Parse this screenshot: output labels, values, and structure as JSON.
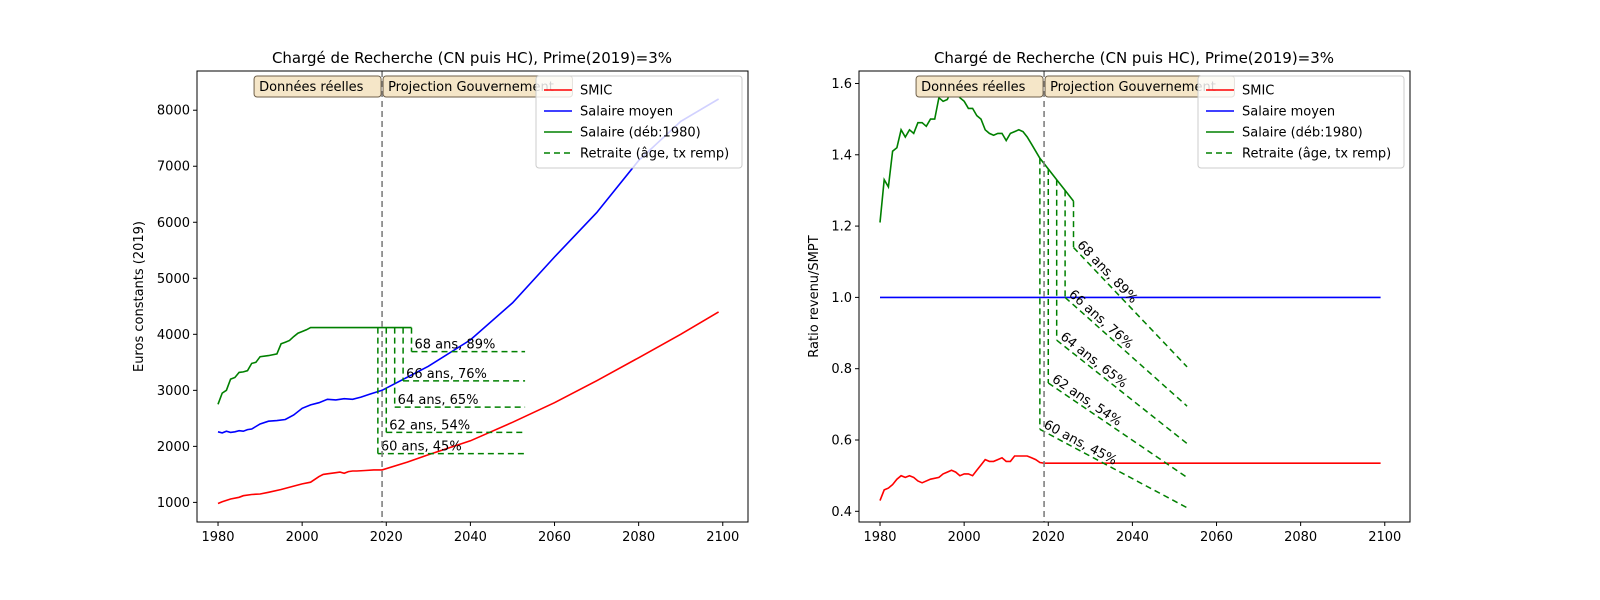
{
  "colors": {
    "smic": "#ff0000",
    "salaire_moyen": "#0000ff",
    "salaire": "#008000",
    "retraite": "#008000",
    "vline": "#808080",
    "box_fill": "#f5e6c8",
    "box_edge": "#6e5f4a"
  },
  "chart_data": [
    {
      "type": "line",
      "title": "Chargé de Recherche (CN puis HC), Prime(2019)=3%",
      "xlabel": "",
      "ylabel": "Euros constants (2019)",
      "xlim": [
        1975,
        2106
      ],
      "ylim": [
        650,
        8700
      ],
      "xticks": [
        "1980",
        "2000",
        "2020",
        "2040",
        "2060",
        "2080",
        "2100"
      ],
      "yticks": [
        "1000",
        "2000",
        "3000",
        "4000",
        "5000",
        "6000",
        "7000",
        "8000"
      ],
      "grid": false,
      "legend_position": "top-right",
      "vline_x": 2019,
      "box_left": "Données réelles",
      "box_right": "Projection Gouvernement",
      "legend": [
        "SMIC",
        "Salaire moyen",
        "Salaire (déb:1980)",
        "Retraite (âge, tx remp)"
      ],
      "series": [
        {
          "name": "SMIC",
          "style": "solid",
          "color": "#ff0000",
          "x": [
            1980,
            1981,
            1983,
            1985,
            1986,
            1988,
            1990,
            1992,
            1995,
            1998,
            2000,
            2002,
            2004,
            2005,
            2006,
            2008,
            2009,
            2010,
            2011,
            2012,
            2013,
            2015,
            2017,
            2019,
            2025,
            2030,
            2040,
            2050,
            2060,
            2070,
            2080,
            2090,
            2099
          ],
          "y": [
            980,
            1010,
            1060,
            1090,
            1120,
            1140,
            1150,
            1180,
            1230,
            1290,
            1330,
            1360,
            1460,
            1500,
            1510,
            1530,
            1540,
            1520,
            1550,
            1560,
            1560,
            1570,
            1580,
            1580,
            1720,
            1850,
            2100,
            2430,
            2780,
            3170,
            3580,
            4000,
            4400
          ]
        },
        {
          "name": "Salaire moyen",
          "style": "solid",
          "color": "#0000ff",
          "x": [
            1980,
            1981,
            1982,
            1983,
            1984,
            1985,
            1986,
            1987,
            1988,
            1990,
            1992,
            1994,
            1996,
            1998,
            2000,
            2002,
            2004,
            2006,
            2008,
            2010,
            2012,
            2014,
            2016,
            2019,
            2030,
            2040,
            2050,
            2060,
            2070,
            2080,
            2090,
            2099
          ],
          "y": [
            2260,
            2240,
            2270,
            2250,
            2260,
            2280,
            2270,
            2300,
            2310,
            2400,
            2450,
            2460,
            2480,
            2560,
            2680,
            2740,
            2780,
            2840,
            2830,
            2850,
            2840,
            2880,
            2930,
            3000,
            3430,
            3900,
            4560,
            5380,
            6170,
            7100,
            7800,
            8200
          ]
        },
        {
          "name": "Salaire (déb:1980)",
          "style": "solid",
          "color": "#008000",
          "x": [
            1980,
            1981,
            1982,
            1983,
            1984,
            1985,
            1986,
            1987,
            1988,
            1989,
            1990,
            1992,
            1994,
            1995,
            1996,
            1997,
            1998,
            1999,
            2000,
            2001,
            2002,
            2005,
            2010,
            2015,
            2020,
            2026
          ],
          "y": [
            2750,
            2950,
            3000,
            3200,
            3230,
            3320,
            3330,
            3350,
            3480,
            3500,
            3600,
            3620,
            3650,
            3830,
            3860,
            3890,
            3960,
            4020,
            4050,
            4080,
            4120,
            4120,
            4120,
            4120,
            4120,
            4120
          ]
        }
      ],
      "retraites": [
        {
          "label": "60 ans, 45%",
          "age_year": 2018,
          "salary": 4120,
          "pension": 1870
        },
        {
          "label": "62 ans, 54%",
          "age_year": 2020,
          "salary": 4120,
          "pension": 2250
        },
        {
          "label": "64 ans, 65%",
          "age_year": 2022,
          "salary": 4120,
          "pension": 2700
        },
        {
          "label": "66 ans, 76%",
          "age_year": 2024,
          "salary": 4120,
          "pension": 3170
        },
        {
          "label": "68 ans, 89%",
          "age_year": 2026,
          "salary": 4120,
          "pension": 3690
        }
      ],
      "retraite_end_year": 2053
    },
    {
      "type": "line",
      "title": "Chargé de Recherche (CN puis HC), Prime(2019)=3%",
      "xlabel": "",
      "ylabel": "Ratio revenu/SMPT",
      "xlim": [
        1975,
        2106
      ],
      "ylim": [
        0.37,
        1.635
      ],
      "xticks": [
        "1980",
        "2000",
        "2020",
        "2040",
        "2060",
        "2080",
        "2100"
      ],
      "yticks": [
        "0.4",
        "0.6",
        "0.8",
        "1.0",
        "1.2",
        "1.4",
        "1.6"
      ],
      "grid": false,
      "legend_position": "top-right",
      "vline_x": 2019,
      "box_left": "Données réelles",
      "box_right": "Projection Gouvernement",
      "legend": [
        "SMIC",
        "Salaire moyen",
        "Salaire (déb:1980)",
        "Retraite (âge, tx remp)"
      ],
      "series": [
        {
          "name": "SMIC",
          "style": "solid",
          "color": "#ff0000",
          "x": [
            1980,
            1981,
            1982,
            1983,
            1984,
            1985,
            1986,
            1987,
            1988,
            1989,
            1990,
            1992,
            1994,
            1995,
            1996,
            1997,
            1998,
            1999,
            2000,
            2001,
            2002,
            2003,
            2004,
            2005,
            2006,
            2007,
            2008,
            2009,
            2010,
            2011,
            2012,
            2013,
            2014,
            2015,
            2016,
            2017,
            2018,
            2019,
            2030,
            2040,
            2050,
            2060,
            2070,
            2080,
            2090,
            2099
          ],
          "y": [
            0.43,
            0.46,
            0.465,
            0.475,
            0.49,
            0.5,
            0.495,
            0.5,
            0.495,
            0.485,
            0.48,
            0.49,
            0.495,
            0.505,
            0.51,
            0.515,
            0.51,
            0.5,
            0.505,
            0.505,
            0.5,
            0.515,
            0.53,
            0.545,
            0.54,
            0.54,
            0.545,
            0.55,
            0.54,
            0.54,
            0.555,
            0.555,
            0.555,
            0.555,
            0.55,
            0.545,
            0.537,
            0.535,
            0.535,
            0.535,
            0.535,
            0.535,
            0.535,
            0.535,
            0.535,
            0.535
          ]
        },
        {
          "name": "Salaire moyen",
          "style": "solid",
          "color": "#0000ff",
          "x": [
            1980,
            2099
          ],
          "y": [
            1.0,
            1.0
          ]
        },
        {
          "name": "Salaire (déb:1980)",
          "style": "solid",
          "color": "#008000",
          "x": [
            1980,
            1981,
            1982,
            1983,
            1984,
            1985,
            1986,
            1987,
            1988,
            1989,
            1990,
            1991,
            1992,
            1993,
            1994,
            1995,
            1996,
            1997,
            1998,
            1999,
            2000,
            2001,
            2002,
            2003,
            2004,
            2005,
            2006,
            2007,
            2008,
            2009,
            2010,
            2011,
            2012,
            2013,
            2014,
            2015,
            2016,
            2017,
            2018,
            2020,
            2022,
            2024,
            2026
          ],
          "y": [
            1.21,
            1.33,
            1.31,
            1.41,
            1.42,
            1.47,
            1.45,
            1.47,
            1.46,
            1.49,
            1.49,
            1.48,
            1.5,
            1.5,
            1.56,
            1.55,
            1.555,
            1.58,
            1.575,
            1.56,
            1.55,
            1.53,
            1.53,
            1.51,
            1.5,
            1.47,
            1.46,
            1.455,
            1.46,
            1.46,
            1.44,
            1.46,
            1.465,
            1.47,
            1.465,
            1.45,
            1.43,
            1.41,
            1.39,
            1.36,
            1.33,
            1.3,
            1.27
          ]
        }
      ],
      "retraites": [
        {
          "label": "60 ans, 45%",
          "age_year": 2018,
          "salary": 1.39,
          "start": 0.63,
          "end": 0.41
        },
        {
          "label": "62 ans, 54%",
          "age_year": 2020,
          "salary": 1.36,
          "start": 0.76,
          "end": 0.495
        },
        {
          "label": "64 ans, 65%",
          "age_year": 2022,
          "salary": 1.33,
          "start": 0.88,
          "end": 0.59
        },
        {
          "label": "66 ans, 76%",
          "age_year": 2024,
          "salary": 1.3,
          "start": 1.0,
          "end": 0.695
        },
        {
          "label": "68 ans, 89%",
          "age_year": 2026,
          "salary": 1.27,
          "start": 1.14,
          "end": 0.805
        }
      ],
      "retraite_end_year": 2053
    }
  ]
}
